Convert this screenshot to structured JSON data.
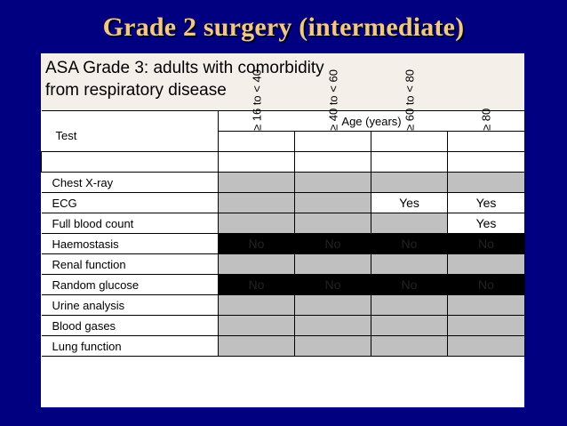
{
  "title": "Grade 2 surgery (intermediate)",
  "panel": {
    "title_line1": "ASA Grade 3: adults with comorbidity",
    "title_line2": "from respiratory disease"
  },
  "table": {
    "test_header": "Test",
    "age_header": "Age (years)",
    "age_groups": [
      "≥ 16 to < 40",
      "≥ 40 to < 60",
      "≥ 60 to < 80",
      "≥ 80"
    ],
    "rows": [
      {
        "test": "Chest X-ray",
        "cells": [
          {
            "text": "",
            "fill": "gray"
          },
          {
            "text": "",
            "fill": "gray"
          },
          {
            "text": "",
            "fill": "gray"
          },
          {
            "text": "",
            "fill": "gray"
          }
        ]
      },
      {
        "test": "ECG",
        "cells": [
          {
            "text": "",
            "fill": "gray"
          },
          {
            "text": "",
            "fill": "gray"
          },
          {
            "text": "Yes",
            "fill": "white"
          },
          {
            "text": "Yes",
            "fill": "white"
          }
        ]
      },
      {
        "test": "Full blood count",
        "cells": [
          {
            "text": "",
            "fill": "gray"
          },
          {
            "text": "",
            "fill": "gray"
          },
          {
            "text": "",
            "fill": "gray"
          },
          {
            "text": "Yes",
            "fill": "white"
          }
        ]
      },
      {
        "test": "Haemostasis",
        "cells": [
          {
            "text": "No",
            "fill": "black"
          },
          {
            "text": "No",
            "fill": "black"
          },
          {
            "text": "No",
            "fill": "black"
          },
          {
            "text": "No",
            "fill": "black"
          }
        ]
      },
      {
        "test": "Renal function",
        "cells": [
          {
            "text": "",
            "fill": "gray"
          },
          {
            "text": "",
            "fill": "gray"
          },
          {
            "text": "",
            "fill": "gray"
          },
          {
            "text": "",
            "fill": "gray"
          }
        ]
      },
      {
        "test": "Random glucose",
        "cells": [
          {
            "text": "No",
            "fill": "black"
          },
          {
            "text": "No",
            "fill": "black"
          },
          {
            "text": "No",
            "fill": "black"
          },
          {
            "text": "No",
            "fill": "black"
          }
        ]
      },
      {
        "test": "Urine analysis",
        "cells": [
          {
            "text": "",
            "fill": "gray"
          },
          {
            "text": "",
            "fill": "gray"
          },
          {
            "text": "",
            "fill": "gray"
          },
          {
            "text": "",
            "fill": "gray"
          }
        ]
      },
      {
        "test": "Blood gases",
        "cells": [
          {
            "text": "",
            "fill": "gray"
          },
          {
            "text": "",
            "fill": "gray"
          },
          {
            "text": "",
            "fill": "gray"
          },
          {
            "text": "",
            "fill": "gray"
          }
        ]
      },
      {
        "test": "Lung function",
        "cells": [
          {
            "text": "",
            "fill": "gray"
          },
          {
            "text": "",
            "fill": "gray"
          },
          {
            "text": "",
            "fill": "gray"
          },
          {
            "text": "",
            "fill": "gray"
          }
        ]
      }
    ]
  },
  "colors": {
    "background": "#000080",
    "title": "#f2c78c",
    "gray_cell": "#c0c0c0",
    "black_cell": "#000000"
  }
}
